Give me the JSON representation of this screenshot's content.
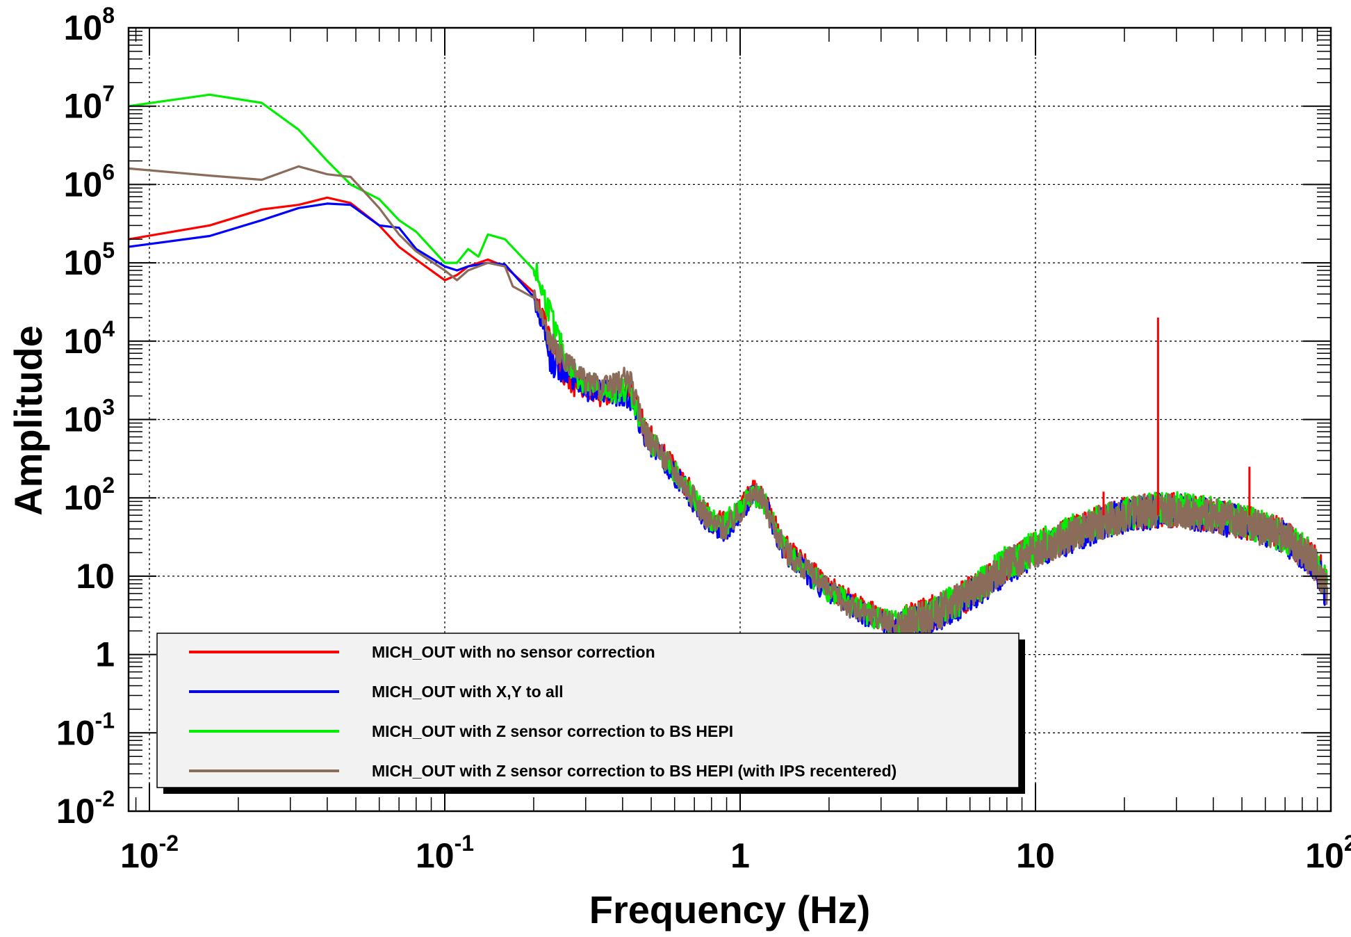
{
  "chart_data": {
    "type": "line",
    "title": "",
    "xlabel": "Frequency (Hz)",
    "ylabel": "Amplitude",
    "xscale": "log",
    "yscale": "log",
    "xlim": [
      0.0085,
      100
    ],
    "ylim": [
      0.01,
      100000000
    ],
    "grid": true,
    "legend_position": "bottom-left",
    "x_ticks": [
      {
        "value": 0.01,
        "base": "10",
        "exp": "-2"
      },
      {
        "value": 0.1,
        "base": "10",
        "exp": "-1"
      },
      {
        "value": 1,
        "base": "1",
        "exp": ""
      },
      {
        "value": 10,
        "base": "10",
        "exp": ""
      },
      {
        "value": 100,
        "base": "10",
        "exp": "2"
      }
    ],
    "y_ticks": [
      {
        "value": 0.01,
        "base": "10",
        "exp": "-2"
      },
      {
        "value": 0.1,
        "base": "10",
        "exp": "-1"
      },
      {
        "value": 1,
        "base": "1",
        "exp": ""
      },
      {
        "value": 10,
        "base": "10",
        "exp": ""
      },
      {
        "value": 100,
        "base": "10",
        "exp": "2"
      },
      {
        "value": 1000,
        "base": "10",
        "exp": "3"
      },
      {
        "value": 10000,
        "base": "10",
        "exp": "4"
      },
      {
        "value": 100000,
        "base": "10",
        "exp": "5"
      },
      {
        "value": 1000000,
        "base": "10",
        "exp": "6"
      },
      {
        "value": 10000000,
        "base": "10",
        "exp": "7"
      },
      {
        "value": 100000000,
        "base": "10",
        "exp": "8"
      }
    ],
    "series": [
      {
        "name": "MICH_OUT with no sensor correction",
        "color": "#ff0000",
        "points": [
          [
            0.0085,
            200000
          ],
          [
            0.016,
            300000
          ],
          [
            0.024,
            480000
          ],
          [
            0.032,
            550000
          ],
          [
            0.04,
            680000
          ],
          [
            0.048,
            580000
          ],
          [
            0.06,
            300000
          ],
          [
            0.07,
            160000
          ],
          [
            0.08,
            110000
          ],
          [
            0.1,
            60000
          ],
          [
            0.11,
            70000
          ],
          [
            0.12,
            90000
          ],
          [
            0.14,
            110000
          ],
          [
            0.16,
            90000
          ],
          [
            0.2,
            45000
          ],
          [
            0.23,
            10000
          ],
          [
            0.26,
            3000
          ],
          [
            0.3,
            2500
          ],
          [
            0.35,
            2000
          ],
          [
            0.42,
            2500
          ],
          [
            0.48,
            700
          ],
          [
            0.55,
            350
          ],
          [
            0.6,
            250
          ],
          [
            0.7,
            100
          ],
          [
            0.8,
            50
          ],
          [
            0.9,
            45
          ],
          [
            1.0,
            70
          ],
          [
            1.1,
            120
          ],
          [
            1.2,
            100
          ],
          [
            1.4,
            25
          ],
          [
            1.6,
            15
          ],
          [
            2.0,
            7
          ],
          [
            2.5,
            4
          ],
          [
            3.0,
            3
          ],
          [
            3.5,
            2.5
          ],
          [
            4.5,
            3.5
          ],
          [
            6.0,
            6
          ],
          [
            8.0,
            14
          ],
          [
            10,
            22
          ],
          [
            14,
            38
          ],
          [
            18,
            55
          ],
          [
            22,
            65
          ],
          [
            26,
            70
          ],
          [
            30,
            70
          ],
          [
            40,
            60
          ],
          [
            50,
            50
          ],
          [
            60,
            40
          ],
          [
            70,
            32
          ],
          [
            80,
            22
          ],
          [
            90,
            14
          ],
          [
            97,
            8
          ]
        ],
        "spikes": [
          [
            26,
            20000
          ],
          [
            53,
            250
          ],
          [
            17,
            120
          ]
        ]
      },
      {
        "name": "MICH_OUT with X,Y to all",
        "color": "#0000ff",
        "points": [
          [
            0.0085,
            160000
          ],
          [
            0.016,
            220000
          ],
          [
            0.024,
            350000
          ],
          [
            0.032,
            500000
          ],
          [
            0.04,
            570000
          ],
          [
            0.048,
            550000
          ],
          [
            0.06,
            300000
          ],
          [
            0.07,
            280000
          ],
          [
            0.08,
            150000
          ],
          [
            0.1,
            90000
          ],
          [
            0.11,
            80000
          ],
          [
            0.12,
            90000
          ],
          [
            0.14,
            100000
          ],
          [
            0.16,
            95000
          ],
          [
            0.2,
            40000
          ],
          [
            0.23,
            5000
          ],
          [
            0.26,
            4000
          ],
          [
            0.3,
            2500
          ],
          [
            0.35,
            2200
          ],
          [
            0.42,
            2000
          ],
          [
            0.48,
            600
          ],
          [
            0.55,
            300
          ],
          [
            0.6,
            200
          ],
          [
            0.7,
            90
          ],
          [
            0.8,
            45
          ],
          [
            0.9,
            40
          ],
          [
            1.0,
            65
          ],
          [
            1.1,
            110
          ],
          [
            1.2,
            90
          ],
          [
            1.4,
            22
          ],
          [
            1.6,
            13
          ],
          [
            2.0,
            6
          ],
          [
            2.5,
            3.5
          ],
          [
            3.0,
            2.5
          ],
          [
            3.5,
            2.2
          ],
          [
            4.5,
            3
          ],
          [
            6.0,
            5.5
          ],
          [
            8.0,
            13
          ],
          [
            10,
            20
          ],
          [
            14,
            35
          ],
          [
            18,
            52
          ],
          [
            22,
            62
          ],
          [
            26,
            68
          ],
          [
            30,
            68
          ],
          [
            40,
            58
          ],
          [
            50,
            48
          ],
          [
            60,
            38
          ],
          [
            70,
            30
          ],
          [
            80,
            20
          ],
          [
            90,
            12
          ],
          [
            97,
            6
          ]
        ]
      },
      {
        "name": "MICH_OUT with Z sensor correction to BS HEPI",
        "color": "#00ee00",
        "points": [
          [
            0.0085,
            10000000
          ],
          [
            0.016,
            14000000
          ],
          [
            0.024,
            11000000
          ],
          [
            0.032,
            5000000
          ],
          [
            0.04,
            2000000
          ],
          [
            0.048,
            1000000
          ],
          [
            0.06,
            650000
          ],
          [
            0.07,
            350000
          ],
          [
            0.08,
            250000
          ],
          [
            0.1,
            100000
          ],
          [
            0.11,
            100000
          ],
          [
            0.12,
            150000
          ],
          [
            0.13,
            120000
          ],
          [
            0.14,
            230000
          ],
          [
            0.16,
            200000
          ],
          [
            0.2,
            90000
          ],
          [
            0.23,
            20000
          ],
          [
            0.26,
            5000
          ],
          [
            0.3,
            2800
          ],
          [
            0.35,
            2200
          ],
          [
            0.42,
            2500
          ],
          [
            0.48,
            650
          ],
          [
            0.55,
            320
          ],
          [
            0.6,
            220
          ],
          [
            0.7,
            95
          ],
          [
            0.8,
            50
          ],
          [
            0.9,
            48
          ],
          [
            1.0,
            72
          ],
          [
            1.1,
            115
          ],
          [
            1.2,
            95
          ],
          [
            1.4,
            24
          ],
          [
            1.6,
            14
          ],
          [
            2.0,
            6.5
          ],
          [
            2.5,
            3.8
          ],
          [
            3.0,
            2.8
          ],
          [
            3.5,
            2.4
          ],
          [
            4.5,
            3.4
          ],
          [
            6.0,
            6
          ],
          [
            8.0,
            15
          ],
          [
            10,
            23
          ],
          [
            14,
            40
          ],
          [
            18,
            56
          ],
          [
            22,
            66
          ],
          [
            26,
            72
          ],
          [
            30,
            72
          ],
          [
            40,
            62
          ],
          [
            50,
            52
          ],
          [
            60,
            41
          ],
          [
            70,
            33
          ],
          [
            80,
            23
          ],
          [
            90,
            14
          ],
          [
            97,
            8
          ]
        ]
      },
      {
        "name": "MICH_OUT with Z sensor correction to BS HEPI (with IPS recentered)",
        "color": "#8b6b5a",
        "points": [
          [
            0.0085,
            1600000
          ],
          [
            0.016,
            1300000
          ],
          [
            0.024,
            1150000
          ],
          [
            0.032,
            1700000
          ],
          [
            0.04,
            1350000
          ],
          [
            0.048,
            1250000
          ],
          [
            0.06,
            500000
          ],
          [
            0.07,
            230000
          ],
          [
            0.08,
            140000
          ],
          [
            0.1,
            80000
          ],
          [
            0.11,
            60000
          ],
          [
            0.12,
            80000
          ],
          [
            0.14,
            100000
          ],
          [
            0.16,
            90000
          ],
          [
            0.17,
            50000
          ],
          [
            0.2,
            40000
          ],
          [
            0.23,
            9000
          ],
          [
            0.26,
            5000
          ],
          [
            0.3,
            3000
          ],
          [
            0.35,
            2500
          ],
          [
            0.42,
            3500
          ],
          [
            0.48,
            650
          ],
          [
            0.55,
            330
          ],
          [
            0.6,
            230
          ],
          [
            0.7,
            95
          ],
          [
            0.8,
            48
          ],
          [
            0.9,
            42
          ],
          [
            1.0,
            68
          ],
          [
            1.1,
            112
          ],
          [
            1.2,
            92
          ],
          [
            1.4,
            23
          ],
          [
            1.6,
            14
          ],
          [
            2.0,
            6.5
          ],
          [
            2.5,
            3.6
          ],
          [
            3.0,
            2.7
          ],
          [
            3.5,
            2.3
          ],
          [
            4.5,
            3.2
          ],
          [
            6.0,
            5.8
          ],
          [
            8.0,
            14
          ],
          [
            10,
            21
          ],
          [
            14,
            37
          ],
          [
            18,
            53
          ],
          [
            22,
            64
          ],
          [
            26,
            69
          ],
          [
            30,
            69
          ],
          [
            40,
            59
          ],
          [
            50,
            49
          ],
          [
            60,
            39
          ],
          [
            70,
            31
          ],
          [
            80,
            21
          ],
          [
            90,
            13
          ],
          [
            97,
            7
          ]
        ]
      }
    ]
  }
}
